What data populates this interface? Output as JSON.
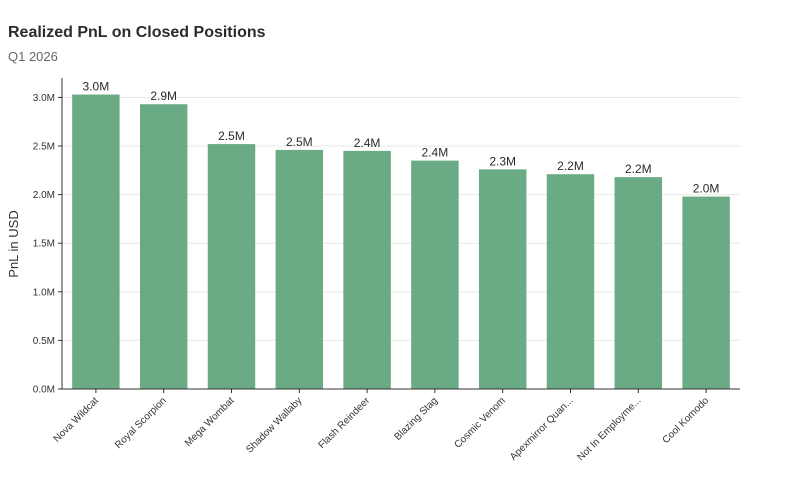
{
  "chart_data": {
    "type": "bar",
    "title": "Realized PnL on Closed Positions",
    "subtitle": "Q1 2026",
    "xlabel": "",
    "ylabel": "PnL in USD",
    "categories": [
      "Nova Wildcat",
      "Royal Scorpion",
      "Mega Wombat",
      "Shadow Wallaby",
      "Flash Reindeer",
      "Blazing Stag",
      "Cosmic Venom",
      "Apexmirror Quan...",
      "Not In Employme...",
      "Cool Komodo"
    ],
    "values": [
      3030000,
      2930000,
      2520000,
      2460000,
      2450000,
      2350000,
      2260000,
      2210000,
      2180000,
      1980000
    ],
    "data_labels": [
      "3.0M",
      "2.9M",
      "2.5M",
      "2.5M",
      "2.4M",
      "2.4M",
      "2.3M",
      "2.2M",
      "2.2M",
      "2.0M"
    ],
    "yticks": [
      0,
      500000,
      1000000,
      1500000,
      2000000,
      2500000,
      3000000
    ],
    "ytick_labels": [
      "0.0M",
      "0.5M",
      "1.0M",
      "1.5M",
      "2.0M",
      "2.5M",
      "3.0M"
    ],
    "ylim": [
      0,
      3000000
    ],
    "grid": true,
    "bar_color": "#6aab85",
    "grid_color": "#e8e8e8",
    "axis_color": "#333333"
  }
}
